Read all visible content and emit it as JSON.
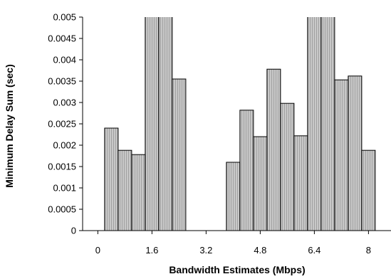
{
  "chart_data": {
    "type": "bar",
    "title": "",
    "xlabel": "Bandwidth Estimates (Mbps)",
    "ylabel": "Minimum Delay Sum (sec)",
    "ylim": [
      0,
      0.005
    ],
    "xlim": [
      -0.45,
      8.7
    ],
    "yticks": [
      "0",
      "0.0005",
      "0.001",
      "0.0015",
      "0.002",
      "0.0025",
      "0.003",
      "0.0035",
      "0.004",
      "0.0045",
      "0.005"
    ],
    "xticks": [
      "0",
      "1.6",
      "3.2",
      "4.8",
      "6.4",
      "8"
    ],
    "grid": false,
    "bar_width": 0.4,
    "bar_fill": "#c8c8c8",
    "bar_stripe": "#a0a0a0",
    "bar_edge": "#000000",
    "bars": [
      {
        "x": 0.4,
        "value": 0.0024
      },
      {
        "x": 0.8,
        "value": 0.00188
      },
      {
        "x": 1.2,
        "value": 0.00178
      },
      {
        "x": 1.6,
        "value": 0.0052
      },
      {
        "x": 2.0,
        "value": 0.0052
      },
      {
        "x": 2.4,
        "value": 0.00355
      },
      {
        "x": 4.0,
        "value": 0.0016
      },
      {
        "x": 4.4,
        "value": 0.00282
      },
      {
        "x": 4.8,
        "value": 0.0022
      },
      {
        "x": 5.2,
        "value": 0.00378
      },
      {
        "x": 5.6,
        "value": 0.00298
      },
      {
        "x": 6.0,
        "value": 0.00222
      },
      {
        "x": 6.4,
        "value": 0.0052
      },
      {
        "x": 6.8,
        "value": 0.0052
      },
      {
        "x": 7.2,
        "value": 0.00353
      },
      {
        "x": 7.6,
        "value": 0.00362
      },
      {
        "x": 8.0,
        "value": 0.00188
      }
    ]
  }
}
